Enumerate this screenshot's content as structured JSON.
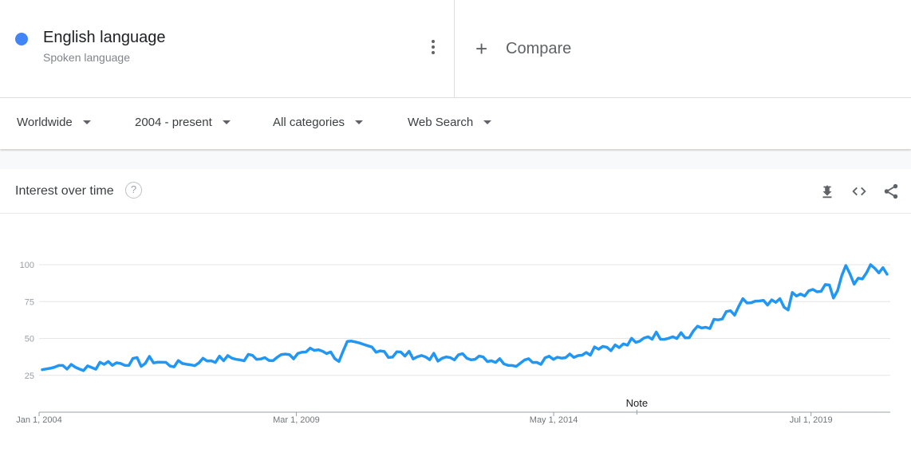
{
  "term": {
    "name": "English language",
    "type": "Spoken language",
    "color": "#4285f4"
  },
  "compare": {
    "label": "Compare",
    "icon": "plus-icon"
  },
  "filters": {
    "region": "Worldwide",
    "time_range": "2004 - present",
    "category": "All categories",
    "search_type": "Web Search"
  },
  "card": {
    "title": "Interest over time",
    "help_icon": "question-mark-icon",
    "tools": [
      "download-icon",
      "embed-code-icon",
      "share-icon"
    ],
    "note_label": "Note"
  },
  "chart_data": {
    "type": "line",
    "title": "Interest over time",
    "ylim": [
      0,
      100
    ],
    "y_ticks": [
      "25",
      "50",
      "75",
      "100"
    ],
    "x_tick_labels": [
      "Jan 1, 2004",
      "Mar 1, 2009",
      "May 1, 2014",
      "Jul 1, 2019"
    ],
    "x_tick_dates": [
      "2004-01-01",
      "2009-03-01",
      "2014-05-01",
      "2019-07-01"
    ],
    "x_range": [
      "2004-01-01",
      "2021-02-01"
    ],
    "grid": true,
    "line_color": "#2196f3",
    "annotation": {
      "label": "Note",
      "date": "2016-01-01"
    },
    "series": [
      {
        "x": [
          "2004-01-01",
          "2004-06-01",
          "2004-12-01",
          "2005-03-01",
          "2005-09-01",
          "2006-03-01",
          "2006-09-01",
          "2007-03-01",
          "2007-09-01",
          "2008-03-01",
          "2008-09-01",
          "2009-03-01",
          "2009-09-01",
          "2010-01-01",
          "2010-03-01",
          "2010-09-01",
          "2011-03-01",
          "2011-09-01",
          "2012-03-01",
          "2012-09-01",
          "2013-03-01",
          "2013-09-01",
          "2014-03-01",
          "2014-09-01",
          "2015-03-01",
          "2015-09-01",
          "2016-03-01",
          "2016-09-01",
          "2017-03-01",
          "2017-09-01",
          "2018-03-01",
          "2018-09-01",
          "2019-03-01",
          "2019-09-01",
          "2020-01-01",
          "2020-03-01",
          "2020-06-01",
          "2020-09-01",
          "2021-01-01"
        ],
        "y": [
          31,
          32,
          29,
          34,
          33,
          36,
          32,
          35,
          36,
          38,
          37,
          40,
          43,
          37,
          46,
          44,
          40,
          38,
          37,
          38,
          35,
          33,
          38,
          38,
          45,
          44,
          52,
          52,
          55,
          62,
          75,
          72,
          78,
          82,
          86,
          96,
          88,
          100,
          98
        ]
      }
    ]
  }
}
